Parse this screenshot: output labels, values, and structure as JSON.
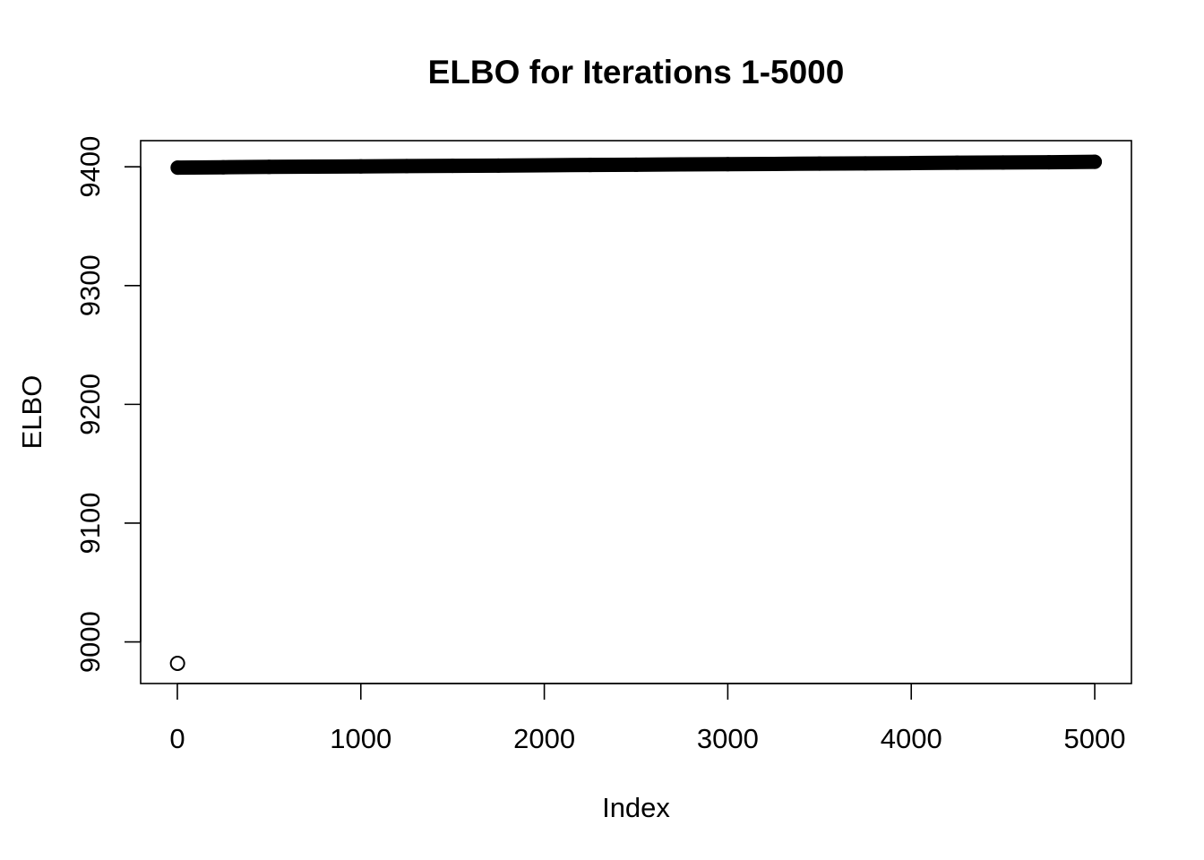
{
  "chart_data": {
    "type": "scatter",
    "title": "ELBO for Iterations 1-5000",
    "xlabel": "Index",
    "ylabel": "ELBO",
    "xlim": [
      -200,
      5200
    ],
    "ylim": [
      8965,
      9422
    ],
    "x_ticks": [
      0,
      1000,
      2000,
      3000,
      4000,
      5000
    ],
    "y_ticks": [
      9000,
      9100,
      9200,
      9300,
      9400
    ],
    "x_tick_labels": [
      "0",
      "1000",
      "2000",
      "3000",
      "4000",
      "5000"
    ],
    "y_tick_labels": [
      "9000",
      "9100",
      "9200",
      "9300",
      "9400"
    ],
    "grid": false,
    "legend": "none",
    "marker": "open-circle",
    "color": "#000000",
    "series": [
      {
        "outlier": {
          "x": 1,
          "y": 8982
        },
        "x": [
          2,
          250,
          500,
          750,
          1000,
          1250,
          1500,
          1750,
          2000,
          2250,
          2500,
          2750,
          3000,
          3250,
          3500,
          3750,
          4000,
          4250,
          4500,
          4750,
          5000
        ],
        "values": [
          9399.3,
          9399.6,
          9399.9,
          9400.1,
          9400.3,
          9400.6,
          9400.8,
          9401.0,
          9401.3,
          9401.5,
          9401.7,
          9402.0,
          9402.2,
          9402.4,
          9402.7,
          9402.9,
          9403.1,
          9403.4,
          9403.6,
          9403.8,
          9404.2
        ]
      }
    ]
  }
}
